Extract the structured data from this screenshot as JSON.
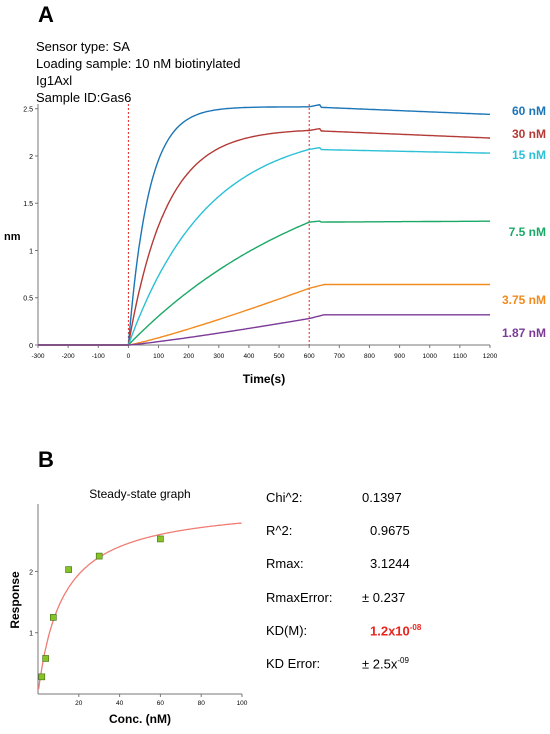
{
  "panelA": {
    "letter": "A",
    "meta": [
      "Sensor type: SA",
      "Loading sample: 10 nM biotinylated",
      "Ig1Axl",
      "Sample ID:Gas6"
    ]
  },
  "panelB": {
    "letter": "B"
  },
  "stats": [
    {
      "label": "Chi^2:",
      "value": "0.1397",
      "exp": ""
    },
    {
      "label": "R^2:",
      "value": "0.9675",
      "exp": ""
    },
    {
      "label": "Rmax:",
      "value": "3.1244",
      "exp": ""
    },
    {
      "label": "RmaxError:",
      "value": "± 0.237",
      "exp": ""
    },
    {
      "label": "KD(M):",
      "value": "1.2x10",
      "exp": "-08"
    },
    {
      "label": "KD Error:",
      "value": "± 2.5x",
      "exp": "-09"
    }
  ],
  "colors": {
    "kd_value": "#e8251f",
    "fit_line": "#f07c74",
    "point_fill": "#88c227"
  },
  "chart_data": [
    {
      "type": "line",
      "title": "",
      "xlabel": "Time(s)",
      "ylabel": "nm",
      "xlim": [
        -300,
        1200
      ],
      "ylim": [
        0,
        2.55
      ],
      "xticks": [
        -300,
        -200,
        -100,
        0,
        100,
        200,
        300,
        400,
        500,
        600,
        700,
        800,
        900,
        1000,
        1100,
        1200
      ],
      "yticks": [
        0,
        0.5,
        1,
        1.5,
        2,
        2.5
      ],
      "ytick_labels": [
        "0",
        "0.5",
        "1",
        "1.5",
        "2",
        "2.5"
      ],
      "vlines": [
        0,
        600
      ],
      "vline_color": "#e8251f",
      "association_end": 600,
      "series": [
        {
          "name": "60 nM",
          "color": "#1b75b6",
          "plateau": 2.52,
          "shape": "fast",
          "dissoc_end": 2.44
        },
        {
          "name": "30 nM",
          "color": "#b33a36",
          "plateau": 2.27,
          "shape": "medium",
          "dissoc_end": 2.19
        },
        {
          "name": "15 nM",
          "color": "#2bc0d6",
          "plateau": 2.07,
          "shape": "slow",
          "dissoc_end": 2.03
        },
        {
          "name": "7.5 nM",
          "color": "#1aa866",
          "plateau": 1.3,
          "shape": "linear",
          "dissoc_end": 1.31
        },
        {
          "name": "3.75 nM",
          "color": "#f28a1e",
          "plateau": 0.6,
          "shape": "convex",
          "dissoc_end": 0.64
        },
        {
          "name": "1.87 nM",
          "color": "#7b3a97",
          "plateau": 0.28,
          "shape": "convex",
          "dissoc_end": 0.32
        }
      ]
    },
    {
      "type": "scatter",
      "title": "Steady-state graph",
      "xlabel": "Conc. (nM)",
      "ylabel": "Response",
      "xlim": [
        0,
        100
      ],
      "ylim": [
        0,
        3.1
      ],
      "xticks": [
        20,
        40,
        60,
        80,
        100
      ],
      "yticks": [
        1,
        2
      ],
      "points": [
        {
          "x": 1.87,
          "y": 0.28
        },
        {
          "x": 3.75,
          "y": 0.58
        },
        {
          "x": 7.5,
          "y": 1.25
        },
        {
          "x": 15,
          "y": 2.03
        },
        {
          "x": 30,
          "y": 2.25
        },
        {
          "x": 60,
          "y": 2.53
        }
      ],
      "fit": {
        "Rmax": 3.1244,
        "KD_nM": 12
      }
    }
  ]
}
